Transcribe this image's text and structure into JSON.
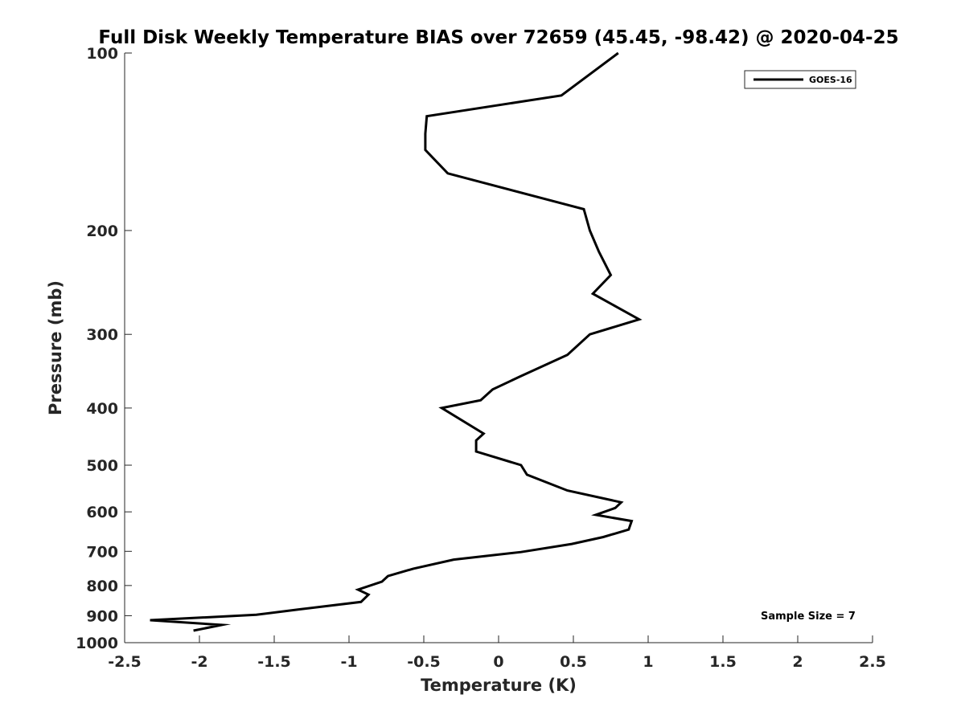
{
  "chart_data": {
    "type": "line",
    "title": "Full Disk Weekly Temperature BIAS over 72659 (45.45, -98.42) @ 2020-04-25",
    "xlabel": "Temperature (K)",
    "ylabel": "Pressure (mb)",
    "xlim": [
      -2.5,
      2.5
    ],
    "ylim": [
      100,
      1000
    ],
    "y_scale": "log",
    "y_reversed": true,
    "xticks": [
      -2.5,
      -2,
      -1.5,
      -1,
      -0.5,
      0,
      0.5,
      1,
      1.5,
      2,
      2.5
    ],
    "xtick_labels": [
      "-2.5",
      "-2",
      "-1.5",
      "-1",
      "-0.5",
      "0",
      "0.5",
      "1",
      "1.5",
      "2",
      "2.5"
    ],
    "yticks": [
      100,
      200,
      300,
      400,
      500,
      600,
      700,
      800,
      900,
      1000
    ],
    "ytick_labels": [
      "100",
      "200",
      "300",
      "400",
      "500",
      "600",
      "700",
      "800",
      "900",
      "1000"
    ],
    "grid": false,
    "legend_position": "top-right",
    "series": [
      {
        "name": "GOES-16",
        "color": "#000000",
        "x": [
          0.8,
          0.42,
          -0.48,
          -0.49,
          -0.49,
          -0.34,
          0.57,
          0.61,
          0.67,
          0.75,
          0.63,
          0.94,
          0.61,
          0.46,
          0.14,
          -0.04,
          -0.12,
          -0.38,
          -0.1,
          -0.15,
          -0.15,
          0.15,
          0.19,
          0.46,
          0.82,
          0.78,
          0.65,
          0.89,
          0.87,
          0.7,
          0.49,
          0.15,
          -0.3,
          -0.57,
          -0.74,
          -0.78,
          -0.94,
          -0.87,
          -0.92,
          -1.33,
          -1.62,
          -2.33,
          -1.85,
          -2.04
        ],
        "y": [
          100,
          118,
          128,
          137,
          146,
          160,
          184,
          200,
          217,
          238,
          256,
          283,
          300,
          325,
          354,
          372,
          388,
          400,
          442,
          454,
          474,
          500,
          519,
          552,
          578,
          591,
          607,
          622,
          643,
          662,
          680,
          702,
          723,
          749,
          771,
          788,
          813,
          829,
          853,
          878,
          897,
          916,
          933,
          954
        ]
      }
    ],
    "annotation": "Sample Size = 7"
  }
}
